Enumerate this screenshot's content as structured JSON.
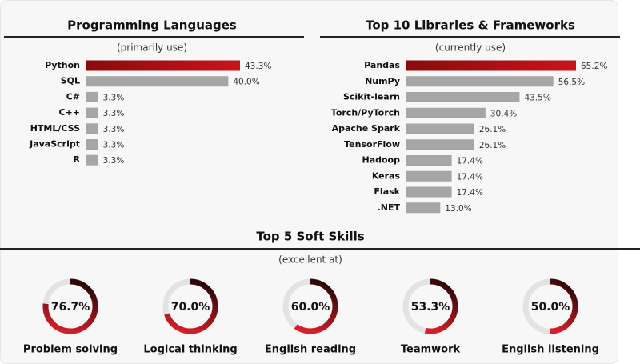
{
  "chart_data": [
    {
      "type": "bar",
      "orientation": "horizontal",
      "title": "Programming Languages",
      "subtitle": "(primarily use)",
      "categories": [
        "Python",
        "SQL",
        "C#",
        "C++",
        "HTML/CSS",
        "JavaScript",
        "R"
      ],
      "values": [
        43.3,
        40.0,
        3.3,
        3.3,
        3.3,
        3.3,
        3.3
      ],
      "value_labels": [
        "43.3%",
        "40.0%",
        "3.3%",
        "3.3%",
        "3.3%",
        "3.3%",
        "3.3%"
      ],
      "colors": [
        "#c9141c",
        "#a6a6a6",
        "#a6a6a6",
        "#a6a6a6",
        "#a6a6a6",
        "#a6a6a6",
        "#a6a6a6"
      ]
    },
    {
      "type": "bar",
      "orientation": "horizontal",
      "title": "Top 10 Libraries & Frameworks",
      "subtitle": "(currently use)",
      "categories": [
        "Pandas",
        "NumPy",
        "Scikit-learn",
        "Torch/PyTorch",
        "Apache Spark",
        "TensorFlow",
        "Hadoop",
        "Keras",
        "Flask",
        ".NET"
      ],
      "values": [
        65.2,
        56.5,
        43.5,
        30.4,
        26.1,
        26.1,
        17.4,
        17.4,
        17.4,
        13.0
      ],
      "value_labels": [
        "65.2%",
        "56.5%",
        "43.5%",
        "30.4%",
        "26.1%",
        "26.1%",
        "17.4%",
        "17.4%",
        "17.4%",
        "13.0%"
      ],
      "colors": [
        "#c9141c",
        "#a6a6a6",
        "#a6a6a6",
        "#a6a6a6",
        "#a6a6a6",
        "#a6a6a6",
        "#a6a6a6",
        "#a6a6a6",
        "#a6a6a6",
        "#a6a6a6"
      ]
    },
    {
      "type": "donut",
      "title": "Top 5 Soft Skills",
      "subtitle": "(excellent at)",
      "categories": [
        "Problem solving",
        "Logical thinking",
        "English reading",
        "Teamwork",
        "English listening"
      ],
      "values": [
        76.7,
        70.0,
        60.0,
        53.3,
        50.0
      ],
      "value_labels": [
        "76.7%",
        "70.0%",
        "60.0%",
        "53.3%",
        "50.0%"
      ],
      "color": "#d71f2a",
      "track_color": "#e3e3e3"
    }
  ]
}
